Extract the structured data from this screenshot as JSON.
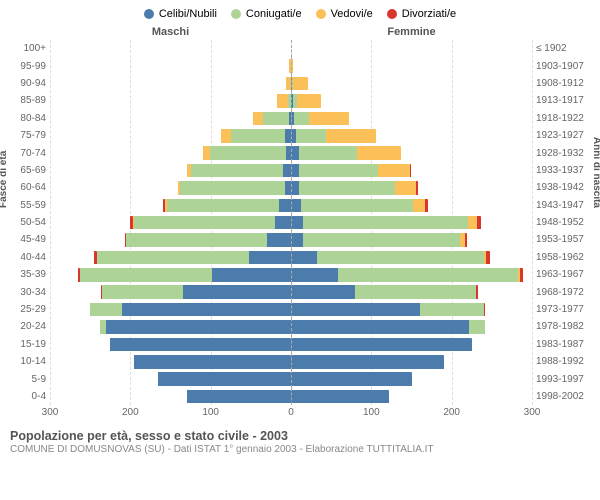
{
  "legend": [
    {
      "label": "Celibi/Nubili",
      "color": "#4b7cab"
    },
    {
      "label": "Coniugati/e",
      "color": "#aed397"
    },
    {
      "label": "Vedovi/e",
      "color": "#fcc058"
    },
    {
      "label": "Divorziati/e",
      "color": "#d9362e"
    }
  ],
  "header": {
    "male": "Maschi",
    "female": "Femmine"
  },
  "axis": {
    "left": "Fasce di età",
    "right": "Anni di nascita"
  },
  "x_ticks": [
    300,
    200,
    100,
    0,
    100,
    200,
    300
  ],
  "max_value": 300,
  "colors": {
    "single": "#4b7cab",
    "married": "#aed397",
    "widowed": "#fcc058",
    "divorced": "#d9362e",
    "gridline": "#dddddd",
    "centerline": "#aaaaaa",
    "text": "#666666",
    "background": "#ffffff"
  },
  "footer": {
    "title": "Popolazione per età, sesso e stato civile - 2003",
    "subtitle": "COMUNE DI DOMUSNOVAS (SU) - Dati ISTAT 1° gennaio 2003 - Elaborazione TUTTITALIA.IT"
  },
  "rows": [
    {
      "age": "100+",
      "birth": "≤ 1902",
      "m": [
        0,
        0,
        0,
        0
      ],
      "f": [
        0,
        0,
        0,
        0
      ]
    },
    {
      "age": "95-99",
      "birth": "1903-1907",
      "m": [
        0,
        0,
        2,
        0
      ],
      "f": [
        0,
        0,
        3,
        0
      ]
    },
    {
      "age": "90-94",
      "birth": "1908-1912",
      "m": [
        0,
        0,
        6,
        0
      ],
      "f": [
        1,
        2,
        18,
        0
      ]
    },
    {
      "age": "85-89",
      "birth": "1913-1917",
      "m": [
        0,
        4,
        13,
        0
      ],
      "f": [
        2,
        5,
        30,
        0
      ]
    },
    {
      "age": "80-84",
      "birth": "1918-1922",
      "m": [
        3,
        32,
        12,
        0
      ],
      "f": [
        4,
        18,
        50,
        0
      ]
    },
    {
      "age": "75-79",
      "birth": "1923-1927",
      "m": [
        7,
        68,
        12,
        0
      ],
      "f": [
        6,
        38,
        62,
        0
      ]
    },
    {
      "age": "70-74",
      "birth": "1928-1932",
      "m": [
        6,
        95,
        9,
        0
      ],
      "f": [
        10,
        72,
        55,
        0
      ]
    },
    {
      "age": "65-69",
      "birth": "1933-1937",
      "m": [
        10,
        115,
        5,
        0
      ],
      "f": [
        10,
        98,
        40,
        2
      ]
    },
    {
      "age": "60-64",
      "birth": "1938-1942",
      "m": [
        8,
        130,
        3,
        0
      ],
      "f": [
        10,
        120,
        25,
        3
      ]
    },
    {
      "age": "55-59",
      "birth": "1943-1947",
      "m": [
        15,
        140,
        2,
        2
      ],
      "f": [
        12,
        140,
        15,
        3
      ]
    },
    {
      "age": "50-54",
      "birth": "1948-1952",
      "m": [
        20,
        175,
        2,
        3
      ],
      "f": [
        15,
        205,
        12,
        4
      ]
    },
    {
      "age": "45-49",
      "birth": "1953-1957",
      "m": [
        30,
        175,
        0,
        2
      ],
      "f": [
        15,
        195,
        6,
        3
      ]
    },
    {
      "age": "40-44",
      "birth": "1958-1962",
      "m": [
        52,
        190,
        0,
        3
      ],
      "f": [
        32,
        208,
        3,
        5
      ]
    },
    {
      "age": "35-39",
      "birth": "1963-1967",
      "m": [
        98,
        165,
        0,
        2
      ],
      "f": [
        58,
        225,
        2,
        4
      ]
    },
    {
      "age": "30-34",
      "birth": "1968-1972",
      "m": [
        135,
        100,
        0,
        2
      ],
      "f": [
        80,
        150,
        0,
        3
      ]
    },
    {
      "age": "25-29",
      "birth": "1973-1977",
      "m": [
        210,
        40,
        0,
        0
      ],
      "f": [
        160,
        80,
        0,
        2
      ]
    },
    {
      "age": "20-24",
      "birth": "1978-1982",
      "m": [
        230,
        8,
        0,
        0
      ],
      "f": [
        222,
        20,
        0,
        0
      ]
    },
    {
      "age": "15-19",
      "birth": "1983-1987",
      "m": [
        225,
        0,
        0,
        0
      ],
      "f": [
        225,
        0,
        0,
        0
      ]
    },
    {
      "age": "10-14",
      "birth": "1988-1992",
      "m": [
        195,
        0,
        0,
        0
      ],
      "f": [
        190,
        0,
        0,
        0
      ]
    },
    {
      "age": "5-9",
      "birth": "1993-1997",
      "m": [
        165,
        0,
        0,
        0
      ],
      "f": [
        150,
        0,
        0,
        0
      ]
    },
    {
      "age": "0-4",
      "birth": "1998-2002",
      "m": [
        130,
        0,
        0,
        0
      ],
      "f": [
        122,
        0,
        0,
        0
      ]
    }
  ]
}
